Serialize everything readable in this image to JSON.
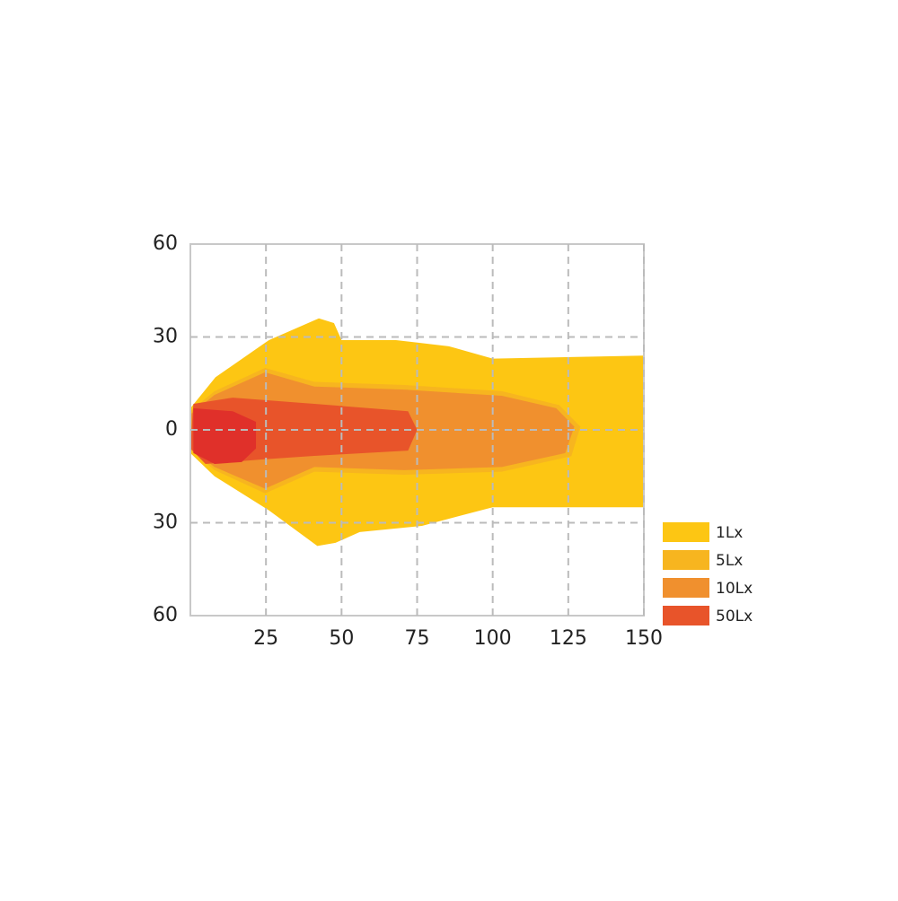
{
  "chart_data": {
    "type": "beam-pattern",
    "xlim": [
      0,
      150
    ],
    "xticks": [
      25,
      50,
      75,
      100,
      125,
      150
    ],
    "ylim": [
      -60,
      60
    ],
    "yticks": [
      60,
      30,
      0,
      {
        "value": -30,
        "label": "30"
      },
      {
        "value": -60,
        "label": "60"
      }
    ],
    "grid": true,
    "legend": "lower right",
    "series": [
      {
        "name": "1Lx",
        "color": "#fdc613",
        "x": [
          0,
          8.3,
          26,
          42.5,
          47.5,
          50,
          68,
          85.5,
          100,
          150,
          150,
          100,
          76.6,
          56,
          48,
          42,
          26,
          8,
          0
        ],
        "y": [
          7,
          17,
          29,
          36,
          34.5,
          29,
          29,
          27,
          23,
          24,
          -25,
          -25,
          -31,
          -33,
          -36.5,
          -37.5,
          -26,
          -15,
          -7.5
        ]
      },
      {
        "name": "5Lx",
        "color": "#f7b51f",
        "x": [
          0,
          8,
          24.7,
          41,
          70.7,
          103,
          122,
          129,
          126,
          103,
          70.7,
          41,
          24.7,
          8,
          0
        ],
        "y": [
          6,
          12.5,
          20,
          15.5,
          14.5,
          12.5,
          8,
          1,
          -8.5,
          -13.5,
          -14.5,
          -13.5,
          -20.5,
          -13,
          -6.5
        ]
      },
      {
        "name": "10Lx",
        "color": "#f0902e",
        "x": [
          0,
          8,
          24.7,
          41,
          70.7,
          103,
          121,
          127,
          124,
          103,
          70.7,
          41,
          24.7,
          8,
          0
        ],
        "y": [
          5,
          11.3,
          18.6,
          14,
          13,
          11,
          7,
          1,
          -7.5,
          -12,
          -13,
          -12,
          -19,
          -12,
          -6
        ]
      },
      {
        "name": "50Lx",
        "color": "#e8542a",
        "x": [
          1,
          14,
          41,
          72,
          75,
          72,
          41,
          23,
          5,
          0
        ],
        "y": [
          8.4,
          10.4,
          8.4,
          6,
          0,
          -6.7,
          -8.4,
          -9.6,
          -11,
          -6
        ]
      },
      {
        "color": "#e0302a",
        "x": [
          1,
          14,
          21.7,
          21.7,
          17,
          8,
          1
        ],
        "y": [
          7,
          6,
          2.6,
          -6,
          -10.4,
          -11,
          -7.5
        ]
      }
    ]
  }
}
